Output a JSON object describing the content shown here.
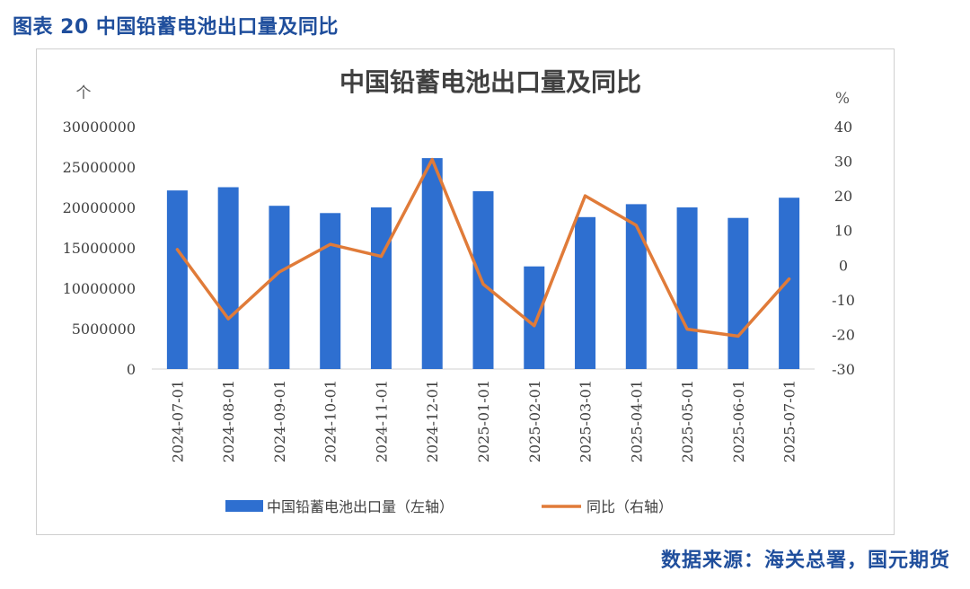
{
  "caption": "图表 20 中国铅蓄电池出口量及同比",
  "source": "数据来源：海关总署，国元期货",
  "chart_data": {
    "type": "bar",
    "title": "中国铅蓄电池出口量及同比",
    "left_unit": "个",
    "right_unit": "%",
    "categories": [
      "2024-07-01",
      "2024-08-01",
      "2024-09-01",
      "2024-10-01",
      "2024-11-01",
      "2024-12-01",
      "2025-01-01",
      "2025-02-01",
      "2025-03-01",
      "2025-04-01",
      "2025-05-01",
      "2025-06-01",
      "2025-07-01"
    ],
    "series": [
      {
        "name": "中国铅蓄电池出口量（左轴）",
        "type": "bar",
        "axis": "left",
        "color": "#2e6fd0",
        "values": [
          22100000,
          22500000,
          20200000,
          19300000,
          20000000,
          26100000,
          22000000,
          12700000,
          18800000,
          20400000,
          20000000,
          18700000,
          21200000
        ]
      },
      {
        "name": "同比（右轴）",
        "type": "line",
        "axis": "right",
        "color": "#e07b39",
        "values": [
          4.5,
          -15.5,
          -2,
          6,
          2.5,
          30.5,
          -5.5,
          -17.5,
          20,
          11.5,
          -18.5,
          -20.5,
          -4
        ]
      }
    ],
    "y_left": {
      "min": 0,
      "max": 30000000,
      "ticks": [
        "30000000",
        "25000000",
        "20000000",
        "15000000",
        "10000000",
        "5000000",
        "0"
      ]
    },
    "y_right": {
      "min": -30,
      "max": 40,
      "ticks": [
        "40",
        "30",
        "20",
        "10",
        "0",
        "-10",
        "-20",
        "-30"
      ]
    },
    "legend_position": "bottom",
    "grid": false
  }
}
